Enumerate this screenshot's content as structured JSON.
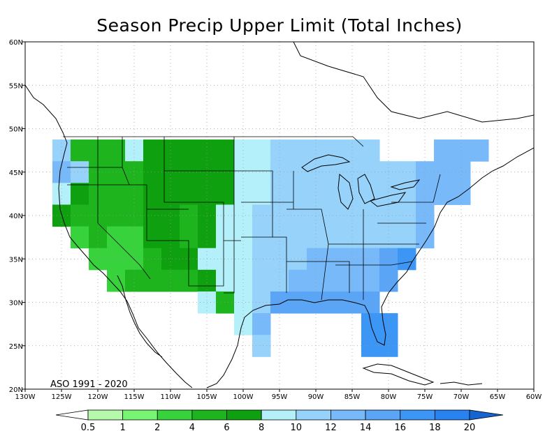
{
  "title": "Season Precip Upper Limit (Total Inches)",
  "period": "ASO 1991 - 2020",
  "lon_labels": [
    "130W",
    "125W",
    "120W",
    "115W",
    "110W",
    "105W",
    "100W",
    "95W",
    "90W",
    "85W",
    "80W",
    "75W",
    "70W",
    "65W",
    "60W"
  ],
  "lat_labels": [
    "20N",
    "25N",
    "30N",
    "35N",
    "40N",
    "45N",
    "50N",
    "55N",
    "60N"
  ],
  "extent": {
    "lon_min": -130,
    "lon_max": -60,
    "lat_min": 20,
    "lat_max": 60
  },
  "colorbar": {
    "labels": [
      "0.5",
      "1",
      "2",
      "4",
      "6",
      "8",
      "10",
      "12",
      "14",
      "16",
      "18",
      "20"
    ],
    "colors": [
      "#ffffff",
      "#b4faaa",
      "#78f573",
      "#37d23c",
      "#1eb41e",
      "#0fa00f",
      "#b4f0fa",
      "#96d2fa",
      "#78b9fa",
      "#5aa5f5",
      "#3c96f5",
      "#2882f0",
      "#1e6ee6",
      "#1464d2"
    ]
  },
  "precip_grid": {
    "cell_deg": 2.5,
    "rows": [
      {
        "lat": 47.5,
        "cells": [
          [
            -125,
            10
          ],
          [
            -122.5,
            4
          ],
          [
            -120,
            4
          ],
          [
            -117.5,
            4
          ],
          [
            -115,
            8
          ],
          [
            -112.5,
            6
          ],
          [
            -110,
            6
          ],
          [
            -107.5,
            6
          ],
          [
            -105,
            6
          ],
          [
            -102.5,
            6
          ],
          [
            -100,
            8
          ],
          [
            -97.5,
            8
          ],
          [
            -95,
            10
          ],
          [
            -92.5,
            10
          ],
          [
            -90,
            10
          ],
          [
            -87.5,
            10
          ],
          [
            -85,
            10
          ],
          [
            -82.5,
            10
          ],
          [
            -72.5,
            12
          ],
          [
            -70,
            12
          ],
          [
            -67.5,
            12
          ]
        ]
      },
      {
        "lat": 45,
        "cells": [
          [
            -125,
            12
          ],
          [
            -122.5,
            10
          ],
          [
            -120,
            4
          ],
          [
            -117.5,
            4
          ],
          [
            -115,
            4
          ],
          [
            -112.5,
            6
          ],
          [
            -110,
            6
          ],
          [
            -107.5,
            6
          ],
          [
            -105,
            6
          ],
          [
            -102.5,
            6
          ],
          [
            -100,
            8
          ],
          [
            -97.5,
            8
          ],
          [
            -95,
            10
          ],
          [
            -92.5,
            10
          ],
          [
            -90,
            10
          ],
          [
            -87.5,
            10
          ],
          [
            -85,
            10
          ],
          [
            -82.5,
            10
          ],
          [
            -80,
            10
          ],
          [
            -77.5,
            10
          ],
          [
            -75,
            12
          ],
          [
            -72.5,
            12
          ],
          [
            -70,
            12
          ]
        ]
      },
      {
        "lat": 42.5,
        "cells": [
          [
            -125,
            8
          ],
          [
            -122.5,
            6
          ],
          [
            -120,
            4
          ],
          [
            -117.5,
            4
          ],
          [
            -115,
            4
          ],
          [
            -112.5,
            6
          ],
          [
            -110,
            6
          ],
          [
            -107.5,
            6
          ],
          [
            -105,
            6
          ],
          [
            -102.5,
            6
          ],
          [
            -100,
            8
          ],
          [
            -97.5,
            8
          ],
          [
            -95,
            10
          ],
          [
            -92.5,
            10
          ],
          [
            -90,
            10
          ],
          [
            -87.5,
            10
          ],
          [
            -85,
            10
          ],
          [
            -82.5,
            10
          ],
          [
            -80,
            10
          ],
          [
            -77.5,
            10
          ],
          [
            -75,
            12
          ],
          [
            -72.5,
            12
          ],
          [
            -70,
            12
          ]
        ]
      },
      {
        "lat": 40,
        "cells": [
          [
            -125,
            6
          ],
          [
            -122.5,
            4
          ],
          [
            -120,
            4
          ],
          [
            -117.5,
            4
          ],
          [
            -115,
            4
          ],
          [
            -112.5,
            6
          ],
          [
            -110,
            6
          ],
          [
            -107.5,
            4
          ],
          [
            -105,
            6
          ],
          [
            -102.5,
            8
          ],
          [
            -100,
            8
          ],
          [
            -97.5,
            10
          ],
          [
            -95,
            10
          ],
          [
            -92.5,
            10
          ],
          [
            -90,
            10
          ],
          [
            -87.5,
            10
          ],
          [
            -85,
            10
          ],
          [
            -82.5,
            10
          ],
          [
            -80,
            10
          ],
          [
            -77.5,
            10
          ],
          [
            -75,
            12
          ]
        ]
      },
      {
        "lat": 37.5,
        "cells": [
          [
            -122.5,
            2
          ],
          [
            -120,
            4
          ],
          [
            -117.5,
            2
          ],
          [
            -115,
            2
          ],
          [
            -112.5,
            6
          ],
          [
            -110,
            6
          ],
          [
            -107.5,
            4
          ],
          [
            -105,
            6
          ],
          [
            -102.5,
            8
          ],
          [
            -100,
            8
          ],
          [
            -97.5,
            10
          ],
          [
            -95,
            10
          ],
          [
            -92.5,
            10
          ],
          [
            -90,
            10
          ],
          [
            -87.5,
            10
          ],
          [
            -85,
            10
          ],
          [
            -82.5,
            10
          ],
          [
            -80,
            10
          ],
          [
            -77.5,
            10
          ],
          [
            -75,
            12
          ]
        ]
      },
      {
        "lat": 35,
        "cells": [
          [
            -120,
            2
          ],
          [
            -117.5,
            2
          ],
          [
            -115,
            2
          ],
          [
            -112.5,
            4
          ],
          [
            -110,
            6
          ],
          [
            -107.5,
            6
          ],
          [
            -105,
            8
          ],
          [
            -102.5,
            8
          ],
          [
            -100,
            8
          ],
          [
            -97.5,
            10
          ],
          [
            -95,
            10
          ],
          [
            -92.5,
            10
          ],
          [
            -90,
            12
          ],
          [
            -87.5,
            12
          ],
          [
            -85,
            12
          ],
          [
            -82.5,
            12
          ],
          [
            -80,
            14
          ],
          [
            -77.5,
            16
          ]
        ]
      },
      {
        "lat": 32.5,
        "cells": [
          [
            -117.5,
            2
          ],
          [
            -115,
            4
          ],
          [
            -112.5,
            4
          ],
          [
            -110,
            4
          ],
          [
            -107.5,
            4
          ],
          [
            -105,
            6
          ],
          [
            -102.5,
            8
          ],
          [
            -100,
            8
          ],
          [
            -97.5,
            10
          ],
          [
            -95,
            10
          ],
          [
            -92.5,
            12
          ],
          [
            -90,
            12
          ],
          [
            -87.5,
            12
          ],
          [
            -85,
            12
          ],
          [
            -82.5,
            12
          ],
          [
            -80,
            14
          ]
        ]
      },
      {
        "lat": 30,
        "cells": [
          [
            -105,
            8
          ],
          [
            -102.5,
            4
          ],
          [
            -100,
            8
          ],
          [
            -97.5,
            10
          ],
          [
            -95,
            14
          ],
          [
            -92.5,
            14
          ],
          [
            -90,
            14
          ],
          [
            -87.5,
            14
          ],
          [
            -85,
            14
          ],
          [
            -82.5,
            14
          ]
        ]
      },
      {
        "lat": 27.5,
        "cells": [
          [
            -100,
            8
          ],
          [
            -97.5,
            12
          ],
          [
            -82.5,
            16
          ],
          [
            -80,
            16
          ]
        ]
      },
      {
        "lat": 25,
        "cells": [
          [
            -97.5,
            10
          ],
          [
            -82.5,
            16
          ],
          [
            -80,
            16
          ]
        ]
      }
    ]
  }
}
